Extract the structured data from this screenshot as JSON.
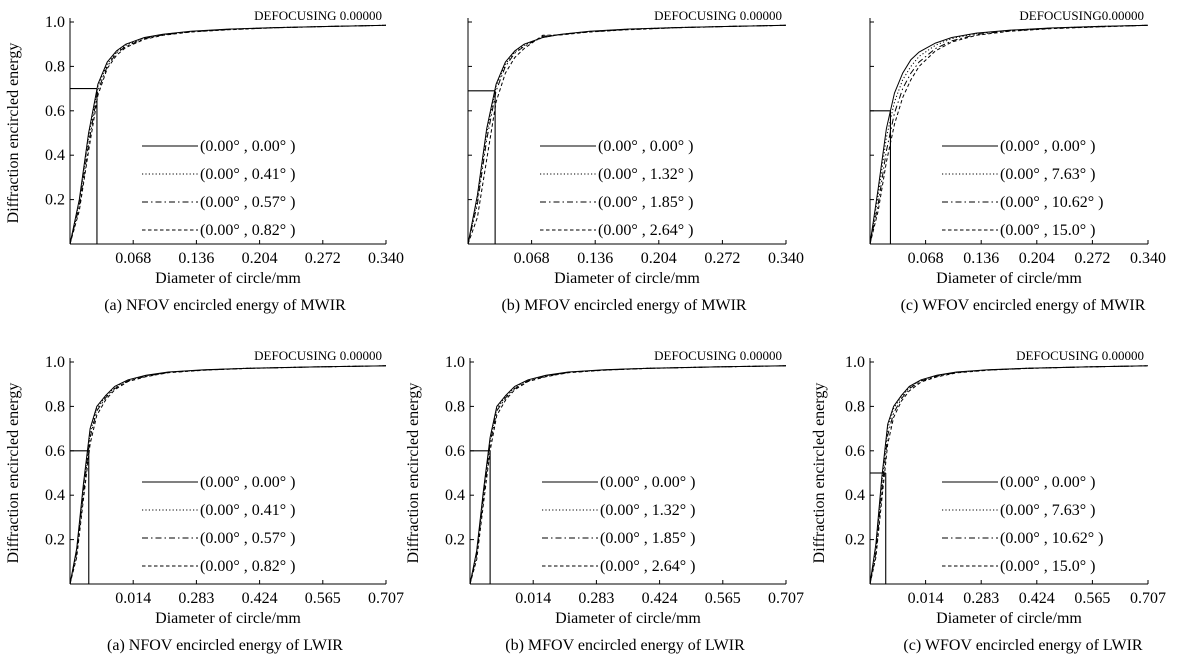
{
  "figure": {
    "style": {
      "line_color": "#000000",
      "background": "#ffffff"
    },
    "line_styles": [
      "solid",
      "dotted",
      "dashdot",
      "dashed"
    ]
  },
  "chart_data": [
    {
      "id": "mwir-nfov",
      "type": "line",
      "defocusing": "DEFOCUSING 0.00000",
      "caption": "(a) NFOV encircled energy of MWIR",
      "xlabel": "Diameter of circle/mm",
      "ylabel": "Diffraction encircled energy",
      "xlim": [
        0,
        0.34
      ],
      "ylim": [
        0,
        1.0
      ],
      "xticks": [
        "0.068",
        "0.136",
        "0.204",
        "0.272",
        "0.340"
      ],
      "yticks": [
        "0.2",
        "0.4",
        "0.6",
        "0.8",
        "1.0"
      ],
      "marker": {
        "x": 0.029,
        "y": 0.7
      },
      "series": [
        {
          "name": "(0.00° , 0.00° )",
          "style": "solid",
          "x": [
            0,
            0.01,
            0.02,
            0.03,
            0.04,
            0.05,
            0.06,
            0.08,
            0.1,
            0.13,
            0.17,
            0.22,
            0.28,
            0.34
          ],
          "y": [
            0,
            0.2,
            0.5,
            0.72,
            0.82,
            0.87,
            0.9,
            0.93,
            0.945,
            0.958,
            0.968,
            0.975,
            0.98,
            0.985
          ]
        },
        {
          "name": "(0.00° , 0.41° )",
          "style": "dotted",
          "x": [
            0,
            0.01,
            0.02,
            0.03,
            0.04,
            0.05,
            0.06,
            0.08,
            0.1,
            0.13,
            0.17,
            0.22,
            0.28,
            0.34
          ],
          "y": [
            0,
            0.19,
            0.48,
            0.71,
            0.81,
            0.865,
            0.895,
            0.928,
            0.944,
            0.957,
            0.967,
            0.975,
            0.98,
            0.985
          ]
        },
        {
          "name": "(0.00° , 0.57° )",
          "style": "dashdot",
          "x": [
            0,
            0.01,
            0.02,
            0.03,
            0.04,
            0.05,
            0.06,
            0.08,
            0.1,
            0.13,
            0.17,
            0.22,
            0.28,
            0.34
          ],
          "y": [
            0,
            0.17,
            0.45,
            0.69,
            0.8,
            0.86,
            0.89,
            0.925,
            0.942,
            0.956,
            0.966,
            0.974,
            0.98,
            0.985
          ]
        },
        {
          "name": "(0.00° , 0.82° )",
          "style": "dashed",
          "x": [
            0,
            0.01,
            0.02,
            0.03,
            0.04,
            0.05,
            0.06,
            0.08,
            0.1,
            0.13,
            0.17,
            0.22,
            0.28,
            0.34
          ],
          "y": [
            0,
            0.15,
            0.42,
            0.67,
            0.79,
            0.85,
            0.885,
            0.922,
            0.94,
            0.955,
            0.965,
            0.974,
            0.98,
            0.985
          ]
        }
      ]
    },
    {
      "id": "mwir-mfov",
      "type": "line",
      "defocusing": "DEFOCUSING 0.00000",
      "caption": "(b) MFOV encircled energy of MWIR",
      "xlabel": "Diameter of circle/mm",
      "ylabel": "",
      "xlim": [
        0,
        0.34
      ],
      "ylim": [
        0,
        1.0
      ],
      "xticks": [
        "0.068",
        "0.136",
        "0.204",
        "0.272",
        "0.340"
      ],
      "yticks": [],
      "marker": {
        "x": 0.029,
        "y": 0.69
      },
      "series": [
        {
          "name": "(0.00° , 0.00° )",
          "style": "solid",
          "x": [
            0,
            0.01,
            0.02,
            0.03,
            0.04,
            0.05,
            0.06,
            0.08,
            0.1,
            0.13,
            0.17,
            0.22,
            0.28,
            0.34
          ],
          "y": [
            0,
            0.22,
            0.52,
            0.72,
            0.82,
            0.87,
            0.9,
            0.93,
            0.945,
            0.958,
            0.968,
            0.975,
            0.98,
            0.985
          ]
        },
        {
          "name": "(0.00° , 1.32° )",
          "style": "dotted",
          "x": [
            0,
            0.01,
            0.02,
            0.03,
            0.04,
            0.05,
            0.06,
            0.08,
            0.1,
            0.13,
            0.17,
            0.22,
            0.28,
            0.34
          ],
          "y": [
            0,
            0.2,
            0.5,
            0.71,
            0.81,
            0.865,
            0.895,
            0.93,
            0.945,
            0.957,
            0.967,
            0.975,
            0.98,
            0.985
          ]
        },
        {
          "name": "(0.00° , 1.85° )",
          "style": "dashdot",
          "x": [
            0,
            0.01,
            0.02,
            0.03,
            0.04,
            0.05,
            0.06,
            0.08,
            0.1,
            0.13,
            0.17,
            0.22,
            0.28,
            0.34
          ],
          "y": [
            0,
            0.18,
            0.47,
            0.69,
            0.8,
            0.86,
            0.89,
            0.935,
            0.944,
            0.956,
            0.966,
            0.974,
            0.98,
            0.985
          ]
        },
        {
          "name": "(0.00° , 2.64° )",
          "style": "dashed",
          "x": [
            0,
            0.01,
            0.02,
            0.03,
            0.04,
            0.05,
            0.06,
            0.08,
            0.1,
            0.13,
            0.17,
            0.22,
            0.28,
            0.34
          ],
          "y": [
            0,
            0.12,
            0.38,
            0.64,
            0.77,
            0.84,
            0.88,
            0.94,
            0.942,
            0.955,
            0.965,
            0.974,
            0.98,
            0.985
          ]
        }
      ]
    },
    {
      "id": "mwir-wfov",
      "type": "line",
      "defocusing": "DEFOCUSING0.00000",
      "caption": "(c) WFOV encircled energy of MWIR",
      "xlabel": "Diameter of circle/mm",
      "ylabel": "",
      "xlim": [
        0,
        0.34
      ],
      "ylim": [
        0,
        1.0
      ],
      "xticks": [
        "0.068",
        "0.136",
        "0.204",
        "0.272",
        "0.340"
      ],
      "yticks": [],
      "marker": {
        "x": 0.025,
        "y": 0.6
      },
      "series": [
        {
          "name": "(0.00° , 0.00° )",
          "style": "solid",
          "x": [
            0,
            0.01,
            0.02,
            0.03,
            0.04,
            0.05,
            0.06,
            0.08,
            0.1,
            0.13,
            0.17,
            0.22,
            0.28,
            0.34
          ],
          "y": [
            0,
            0.25,
            0.52,
            0.68,
            0.77,
            0.83,
            0.865,
            0.905,
            0.93,
            0.95,
            0.963,
            0.973,
            0.98,
            0.985
          ]
        },
        {
          "name": "(0.00° , 7.63° )",
          "style": "dotted",
          "x": [
            0,
            0.01,
            0.02,
            0.03,
            0.04,
            0.05,
            0.06,
            0.08,
            0.1,
            0.13,
            0.17,
            0.22,
            0.28,
            0.34
          ],
          "y": [
            0,
            0.22,
            0.48,
            0.64,
            0.74,
            0.8,
            0.845,
            0.895,
            0.925,
            0.948,
            0.962,
            0.972,
            0.98,
            0.985
          ]
        },
        {
          "name": "(0.00° , 10.62° )",
          "style": "dashdot",
          "x": [
            0,
            0.01,
            0.02,
            0.03,
            0.04,
            0.05,
            0.06,
            0.08,
            0.1,
            0.13,
            0.17,
            0.22,
            0.28,
            0.34
          ],
          "y": [
            0,
            0.18,
            0.42,
            0.59,
            0.7,
            0.77,
            0.82,
            0.88,
            0.915,
            0.944,
            0.96,
            0.971,
            0.979,
            0.985
          ]
        },
        {
          "name": "(0.00° , 15.0° )",
          "style": "dashed",
          "x": [
            0,
            0.01,
            0.02,
            0.03,
            0.04,
            0.05,
            0.06,
            0.08,
            0.1,
            0.13,
            0.17,
            0.22,
            0.28,
            0.34
          ],
          "y": [
            0,
            0.15,
            0.37,
            0.54,
            0.66,
            0.74,
            0.8,
            0.87,
            0.91,
            0.94,
            0.958,
            0.97,
            0.978,
            0.985
          ]
        }
      ]
    },
    {
      "id": "lwir-nfov",
      "type": "line",
      "defocusing": "DEFOCUSING 0.00000",
      "caption": "(a) NFOV encircled energy of LWIR",
      "xlabel": "Diameter of circle/mm",
      "ylabel": "Diffraction encircled energy",
      "xlim": [
        0,
        0.707
      ],
      "ylim": [
        0,
        1.0
      ],
      "xticks": [
        "0.014",
        "0.283",
        "0.424",
        "0.565",
        "0.707"
      ],
      "yticks": [
        "0.2",
        "0.4",
        "0.6",
        "0.8",
        "1.0"
      ],
      "marker": {
        "x": 0.042,
        "y": 0.6
      },
      "series": [
        {
          "name": "(0.00° , 0.00° )",
          "style": "solid",
          "x": [
            0,
            0.015,
            0.03,
            0.045,
            0.06,
            0.08,
            0.1,
            0.13,
            0.17,
            0.22,
            0.3,
            0.4,
            0.55,
            0.707
          ],
          "y": [
            0,
            0.16,
            0.45,
            0.7,
            0.8,
            0.85,
            0.89,
            0.92,
            0.94,
            0.955,
            0.965,
            0.972,
            0.978,
            0.983
          ]
        },
        {
          "name": "(0.00° , 0.41° )",
          "style": "dotted",
          "x": [
            0,
            0.015,
            0.03,
            0.045,
            0.06,
            0.08,
            0.1,
            0.13,
            0.17,
            0.22,
            0.3,
            0.4,
            0.55,
            0.707
          ],
          "y": [
            0,
            0.15,
            0.43,
            0.68,
            0.79,
            0.845,
            0.885,
            0.918,
            0.938,
            0.954,
            0.964,
            0.972,
            0.978,
            0.983
          ]
        },
        {
          "name": "(0.00° , 0.57° )",
          "style": "dashdot",
          "x": [
            0,
            0.015,
            0.03,
            0.045,
            0.06,
            0.08,
            0.1,
            0.13,
            0.17,
            0.22,
            0.3,
            0.4,
            0.55,
            0.707
          ],
          "y": [
            0,
            0.14,
            0.41,
            0.66,
            0.78,
            0.84,
            0.88,
            0.915,
            0.936,
            0.953,
            0.964,
            0.971,
            0.978,
            0.983
          ]
        },
        {
          "name": "(0.00° , 0.82° )",
          "style": "dashed",
          "x": [
            0,
            0.015,
            0.03,
            0.045,
            0.06,
            0.08,
            0.1,
            0.13,
            0.17,
            0.22,
            0.3,
            0.4,
            0.55,
            0.707
          ],
          "y": [
            0,
            0.12,
            0.38,
            0.63,
            0.76,
            0.83,
            0.875,
            0.912,
            0.934,
            0.952,
            0.963,
            0.971,
            0.978,
            0.983
          ]
        }
      ]
    },
    {
      "id": "lwir-mfov",
      "type": "line",
      "defocusing": "DEFOCUSING 0.00000",
      "caption": "(b) MFOV encircled energy of LWIR",
      "xlabel": "Diameter of circle/mm",
      "ylabel": "Diffraction encircled energy",
      "xlim": [
        0,
        0.707
      ],
      "ylim": [
        0,
        1.0
      ],
      "xticks": [
        "0.014",
        "0.283",
        "0.424",
        "0.565",
        "0.707"
      ],
      "yticks": [
        "0.2",
        "0.4",
        "0.6",
        "0.8",
        "1.0"
      ],
      "marker": {
        "x": 0.045,
        "y": 0.6
      },
      "series": [
        {
          "name": "(0.00° , 0.00° )",
          "style": "solid",
          "x": [
            0,
            0.015,
            0.03,
            0.045,
            0.06,
            0.08,
            0.1,
            0.13,
            0.17,
            0.22,
            0.3,
            0.4,
            0.55,
            0.707
          ],
          "y": [
            0,
            0.15,
            0.42,
            0.66,
            0.8,
            0.85,
            0.89,
            0.92,
            0.94,
            0.955,
            0.965,
            0.972,
            0.978,
            0.983
          ]
        },
        {
          "name": "(0.00° , 1.32° )",
          "style": "dotted",
          "x": [
            0,
            0.015,
            0.03,
            0.045,
            0.06,
            0.08,
            0.1,
            0.13,
            0.17,
            0.22,
            0.3,
            0.4,
            0.55,
            0.707
          ],
          "y": [
            0,
            0.14,
            0.41,
            0.65,
            0.79,
            0.845,
            0.885,
            0.918,
            0.938,
            0.954,
            0.964,
            0.972,
            0.978,
            0.983
          ]
        },
        {
          "name": "(0.00° , 1.85° )",
          "style": "dashdot",
          "x": [
            0,
            0.015,
            0.03,
            0.045,
            0.06,
            0.08,
            0.1,
            0.13,
            0.17,
            0.22,
            0.3,
            0.4,
            0.55,
            0.707
          ],
          "y": [
            0,
            0.13,
            0.39,
            0.63,
            0.78,
            0.84,
            0.88,
            0.915,
            0.936,
            0.953,
            0.964,
            0.971,
            0.978,
            0.983
          ]
        },
        {
          "name": "(0.00° , 2.64° )",
          "style": "dashed",
          "x": [
            0,
            0.015,
            0.03,
            0.045,
            0.06,
            0.08,
            0.1,
            0.13,
            0.17,
            0.22,
            0.3,
            0.4,
            0.55,
            0.707
          ],
          "y": [
            0,
            0.11,
            0.36,
            0.6,
            0.76,
            0.83,
            0.875,
            0.912,
            0.934,
            0.952,
            0.963,
            0.971,
            0.978,
            0.983
          ]
        }
      ]
    },
    {
      "id": "lwir-wfov",
      "type": "line",
      "defocusing": "DEFOCUSING 0.00000",
      "caption": "(c) WFOV encircled energy of LWIR",
      "xlabel": "Diameter of circle/mm",
      "ylabel": "Diffraction encircled energy",
      "xlim": [
        0,
        0.707
      ],
      "ylim": [
        0,
        1.0
      ],
      "xticks": [
        "0.014",
        "0.283",
        "0.424",
        "0.565",
        "0.707"
      ],
      "yticks": [
        "0.2",
        "0.4",
        "0.6",
        "0.8",
        "1.0"
      ],
      "marker": {
        "x": 0.04,
        "y": 0.5
      },
      "series": [
        {
          "name": "(0.00° , 0.00° )",
          "style": "solid",
          "x": [
            0,
            0.015,
            0.03,
            0.045,
            0.06,
            0.08,
            0.1,
            0.13,
            0.17,
            0.22,
            0.3,
            0.4,
            0.55,
            0.707
          ],
          "y": [
            0,
            0.18,
            0.48,
            0.72,
            0.8,
            0.85,
            0.89,
            0.92,
            0.94,
            0.955,
            0.965,
            0.972,
            0.978,
            0.983
          ]
        },
        {
          "name": "(0.00° , 7.63° )",
          "style": "dotted",
          "x": [
            0,
            0.015,
            0.03,
            0.045,
            0.06,
            0.08,
            0.1,
            0.13,
            0.17,
            0.22,
            0.3,
            0.4,
            0.55,
            0.707
          ],
          "y": [
            0,
            0.16,
            0.45,
            0.7,
            0.79,
            0.845,
            0.885,
            0.918,
            0.938,
            0.954,
            0.964,
            0.972,
            0.978,
            0.983
          ]
        },
        {
          "name": "(0.00° , 10.62° )",
          "style": "dashdot",
          "x": [
            0,
            0.015,
            0.03,
            0.045,
            0.06,
            0.08,
            0.1,
            0.13,
            0.17,
            0.22,
            0.3,
            0.4,
            0.55,
            0.707
          ],
          "y": [
            0,
            0.14,
            0.42,
            0.67,
            0.77,
            0.835,
            0.88,
            0.915,
            0.936,
            0.953,
            0.964,
            0.971,
            0.978,
            0.983
          ]
        },
        {
          "name": "(0.00° , 15.0° )",
          "style": "dashed",
          "x": [
            0,
            0.015,
            0.03,
            0.045,
            0.06,
            0.08,
            0.1,
            0.13,
            0.17,
            0.22,
            0.3,
            0.4,
            0.55,
            0.707
          ],
          "y": [
            0,
            0.12,
            0.38,
            0.63,
            0.75,
            0.825,
            0.87,
            0.91,
            0.933,
            0.951,
            0.963,
            0.971,
            0.978,
            0.983
          ]
        }
      ]
    }
  ]
}
